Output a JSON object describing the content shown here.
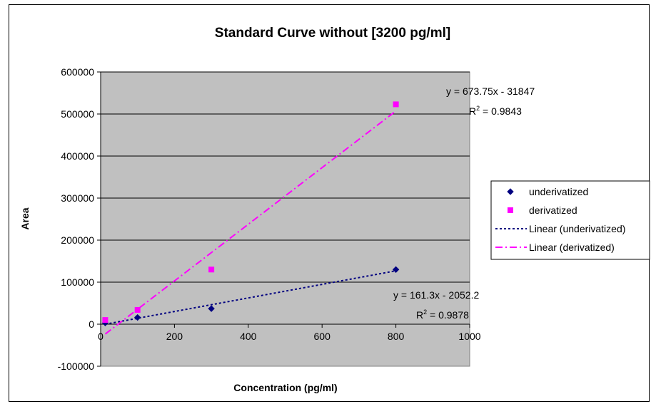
{
  "chart_data": {
    "type": "scatter",
    "title": "Standard Curve without [3200 pg/ml]",
    "xlabel": "Concentration (pg/ml)",
    "ylabel": "Area",
    "xlim": [
      0,
      1000
    ],
    "ylim": [
      -100000,
      600000
    ],
    "xticks": [
      "0",
      "200",
      "400",
      "600",
      "800",
      "1000"
    ],
    "yticks": [
      "-100000",
      "0",
      "100000",
      "200000",
      "300000",
      "400000",
      "500000",
      "600000"
    ],
    "grid": "horizontal",
    "legend_position": "right",
    "series": [
      {
        "name": "underivatized",
        "color": "#000080",
        "marker": "diamond",
        "points": [
          [
            12.5,
            3000
          ],
          [
            100,
            16000
          ],
          [
            300,
            37000
          ],
          [
            800,
            130000
          ]
        ]
      },
      {
        "name": "derivatized",
        "color": "#ff00ff",
        "marker": "square",
        "points": [
          [
            12.5,
            10000
          ],
          [
            100,
            34000
          ],
          [
            300,
            130000
          ],
          [
            800,
            523000
          ]
        ]
      }
    ],
    "trendlines": [
      {
        "name": "Linear (underivatized)",
        "color": "#000080",
        "slope": 161.3,
        "intercept": -2052.2,
        "x_range": [
          12.5,
          800
        ],
        "dash": "dotted",
        "equation": "y = 161.3x - 2052.2",
        "r2": "= 0.9878"
      },
      {
        "name": "Linear (derivatized)",
        "color": "#ff00ff",
        "slope": 673.75,
        "intercept": -31847,
        "x_range": [
          12.5,
          800
        ],
        "dash": "dash-dot",
        "equation": "y = 673.75x - 31847",
        "r2": "= 0.9843"
      }
    ]
  }
}
